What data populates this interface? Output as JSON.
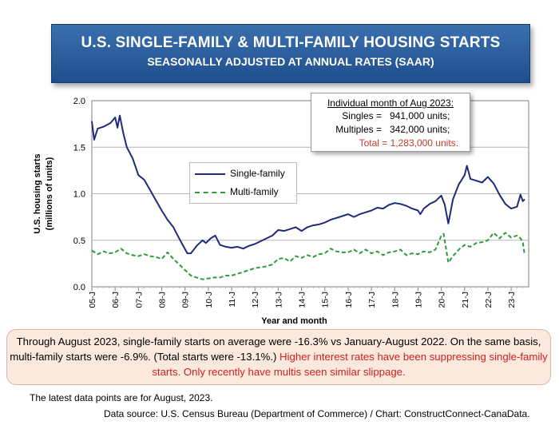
{
  "header": {
    "title": "U.S. SINGLE-FAMILY & MULTI-FAMILY HOUSING STARTS",
    "subtitle": "SEASONALLY ADJUSTED AT ANNUAL RATES (SAAR)"
  },
  "info": {
    "heading": "Individual month of Aug 2023:",
    "singles_label": "Singles =",
    "singles_value": "941,000 units;",
    "multiples_label": "Multiples =",
    "multiples_value": "342,000 units;",
    "total": "Total = 1,283,000 units.",
    "total_color": "#d0201e"
  },
  "note": {
    "black": "Through August 2023, single-family starts on average were -16.3% vs January-August 2022. On the same basis, multi-family starts were -6.9%. (Total starts were -13.1%.)",
    "red": "Higher interest rates have been suppressing single-family starts. Only recently have multis seen similar slippage."
  },
  "footer": {
    "latest": "The latest data points are for August, 2023.",
    "source": "Data source: U.S. Census Bureau (Department of Commerce) / Chart: ConstructConnect-CanaData."
  },
  "chart_data": {
    "type": "line",
    "title": "U.S. SINGLE-FAMILY & MULTI-FAMILY HOUSING STARTS",
    "xlabel": "Year and month",
    "ylabel": "U.S. housing starts (millions of units)",
    "ylim": [
      0,
      2.0
    ],
    "yticks": [
      "0.0",
      "0.5",
      "1.0",
      "1.5",
      "2.0"
    ],
    "x_start": "2005-01",
    "x_end": "2023-08",
    "xticks": [
      "05-J",
      "06-J",
      "07-J",
      "08-J",
      "09-J",
      "10-J",
      "11-J",
      "12-J",
      "13-J",
      "14-J",
      "15-J",
      "16-J",
      "17-J",
      "18-J",
      "19-J",
      "20-J",
      "21-J",
      "22-J",
      "23-J"
    ],
    "grid": true,
    "legend_position": "center-left",
    "series": [
      {
        "name": "Single-family",
        "color": "#1f2a7a",
        "style": "solid",
        "points": [
          [
            2005.0,
            1.78
          ],
          [
            2005.1,
            1.58
          ],
          [
            2005.25,
            1.7
          ],
          [
            2005.5,
            1.72
          ],
          [
            2005.8,
            1.76
          ],
          [
            2006.0,
            1.82
          ],
          [
            2006.1,
            1.71
          ],
          [
            2006.2,
            1.84
          ],
          [
            2006.35,
            1.65
          ],
          [
            2006.5,
            1.5
          ],
          [
            2006.75,
            1.38
          ],
          [
            2007.0,
            1.2
          ],
          [
            2007.25,
            1.15
          ],
          [
            2007.5,
            1.04
          ],
          [
            2007.75,
            0.93
          ],
          [
            2008.0,
            0.82
          ],
          [
            2008.25,
            0.72
          ],
          [
            2008.5,
            0.64
          ],
          [
            2008.75,
            0.52
          ],
          [
            2008.9,
            0.45
          ],
          [
            2009.1,
            0.36
          ],
          [
            2009.25,
            0.36
          ],
          [
            2009.5,
            0.44
          ],
          [
            2009.75,
            0.5
          ],
          [
            2009.9,
            0.47
          ],
          [
            2010.1,
            0.52
          ],
          [
            2010.3,
            0.55
          ],
          [
            2010.5,
            0.45
          ],
          [
            2010.75,
            0.43
          ],
          [
            2011.0,
            0.42
          ],
          [
            2011.25,
            0.43
          ],
          [
            2011.5,
            0.41
          ],
          [
            2011.75,
            0.44
          ],
          [
            2012.0,
            0.46
          ],
          [
            2012.25,
            0.49
          ],
          [
            2012.5,
            0.52
          ],
          [
            2012.75,
            0.55
          ],
          [
            2013.0,
            0.61
          ],
          [
            2013.25,
            0.6
          ],
          [
            2013.5,
            0.62
          ],
          [
            2013.75,
            0.64
          ],
          [
            2014.0,
            0.6
          ],
          [
            2014.25,
            0.64
          ],
          [
            2014.5,
            0.66
          ],
          [
            2014.75,
            0.67
          ],
          [
            2015.0,
            0.69
          ],
          [
            2015.25,
            0.72
          ],
          [
            2015.5,
            0.74
          ],
          [
            2015.75,
            0.76
          ],
          [
            2016.0,
            0.78
          ],
          [
            2016.25,
            0.75
          ],
          [
            2016.5,
            0.78
          ],
          [
            2016.75,
            0.8
          ],
          [
            2017.0,
            0.82
          ],
          [
            2017.25,
            0.85
          ],
          [
            2017.5,
            0.84
          ],
          [
            2017.75,
            0.88
          ],
          [
            2018.0,
            0.9
          ],
          [
            2018.25,
            0.89
          ],
          [
            2018.5,
            0.87
          ],
          [
            2018.75,
            0.84
          ],
          [
            2019.0,
            0.82
          ],
          [
            2019.1,
            0.78
          ],
          [
            2019.25,
            0.84
          ],
          [
            2019.5,
            0.89
          ],
          [
            2019.75,
            0.92
          ],
          [
            2020.0,
            0.98
          ],
          [
            2020.15,
            0.88
          ],
          [
            2020.3,
            0.68
          ],
          [
            2020.5,
            0.94
          ],
          [
            2020.75,
            1.1
          ],
          [
            2021.0,
            1.2
          ],
          [
            2021.1,
            1.3
          ],
          [
            2021.25,
            1.16
          ],
          [
            2021.5,
            1.14
          ],
          [
            2021.75,
            1.12
          ],
          [
            2022.0,
            1.18
          ],
          [
            2022.25,
            1.11
          ],
          [
            2022.5,
            0.99
          ],
          [
            2022.75,
            0.89
          ],
          [
            2023.0,
            0.84
          ],
          [
            2023.25,
            0.86
          ],
          [
            2023.4,
            0.99
          ],
          [
            2023.5,
            0.92
          ],
          [
            2023.58,
            0.94
          ]
        ]
      },
      {
        "name": "Multi-family",
        "color": "#2e9b3b",
        "style": "dashed",
        "points": [
          [
            2005.0,
            0.39
          ],
          [
            2005.25,
            0.35
          ],
          [
            2005.5,
            0.38
          ],
          [
            2005.75,
            0.36
          ],
          [
            2006.0,
            0.37
          ],
          [
            2006.25,
            0.41
          ],
          [
            2006.5,
            0.36
          ],
          [
            2006.75,
            0.34
          ],
          [
            2007.0,
            0.33
          ],
          [
            2007.25,
            0.35
          ],
          [
            2007.5,
            0.33
          ],
          [
            2007.75,
            0.32
          ],
          [
            2008.0,
            0.3
          ],
          [
            2008.25,
            0.37
          ],
          [
            2008.5,
            0.3
          ],
          [
            2008.75,
            0.24
          ],
          [
            2009.0,
            0.18
          ],
          [
            2009.25,
            0.12
          ],
          [
            2009.5,
            0.1
          ],
          [
            2009.75,
            0.08
          ],
          [
            2010.0,
            0.09
          ],
          [
            2010.25,
            0.1
          ],
          [
            2010.5,
            0.1
          ],
          [
            2010.75,
            0.12
          ],
          [
            2011.0,
            0.12
          ],
          [
            2011.25,
            0.14
          ],
          [
            2011.5,
            0.16
          ],
          [
            2011.75,
            0.18
          ],
          [
            2012.0,
            0.2
          ],
          [
            2012.25,
            0.21
          ],
          [
            2012.5,
            0.22
          ],
          [
            2012.75,
            0.24
          ],
          [
            2013.0,
            0.3
          ],
          [
            2013.25,
            0.31
          ],
          [
            2013.5,
            0.27
          ],
          [
            2013.75,
            0.33
          ],
          [
            2014.0,
            0.31
          ],
          [
            2014.25,
            0.34
          ],
          [
            2014.5,
            0.32
          ],
          [
            2014.75,
            0.35
          ],
          [
            2015.0,
            0.36
          ],
          [
            2015.25,
            0.41
          ],
          [
            2015.5,
            0.38
          ],
          [
            2015.75,
            0.37
          ],
          [
            2016.0,
            0.37
          ],
          [
            2016.25,
            0.4
          ],
          [
            2016.5,
            0.36
          ],
          [
            2016.75,
            0.4
          ],
          [
            2017.0,
            0.36
          ],
          [
            2017.25,
            0.38
          ],
          [
            2017.5,
            0.34
          ],
          [
            2017.75,
            0.37
          ],
          [
            2018.0,
            0.38
          ],
          [
            2018.25,
            0.4
          ],
          [
            2018.5,
            0.34
          ],
          [
            2018.75,
            0.36
          ],
          [
            2019.0,
            0.35
          ],
          [
            2019.25,
            0.38
          ],
          [
            2019.5,
            0.37
          ],
          [
            2019.75,
            0.4
          ],
          [
            2020.0,
            0.55
          ],
          [
            2020.1,
            0.57
          ],
          [
            2020.3,
            0.26
          ],
          [
            2020.5,
            0.33
          ],
          [
            2020.75,
            0.4
          ],
          [
            2021.0,
            0.45
          ],
          [
            2021.25,
            0.43
          ],
          [
            2021.5,
            0.47
          ],
          [
            2021.75,
            0.48
          ],
          [
            2022.0,
            0.5
          ],
          [
            2022.25,
            0.58
          ],
          [
            2022.5,
            0.52
          ],
          [
            2022.75,
            0.58
          ],
          [
            2023.0,
            0.53
          ],
          [
            2023.25,
            0.55
          ],
          [
            2023.4,
            0.52
          ],
          [
            2023.5,
            0.48
          ],
          [
            2023.58,
            0.34
          ]
        ]
      }
    ]
  }
}
